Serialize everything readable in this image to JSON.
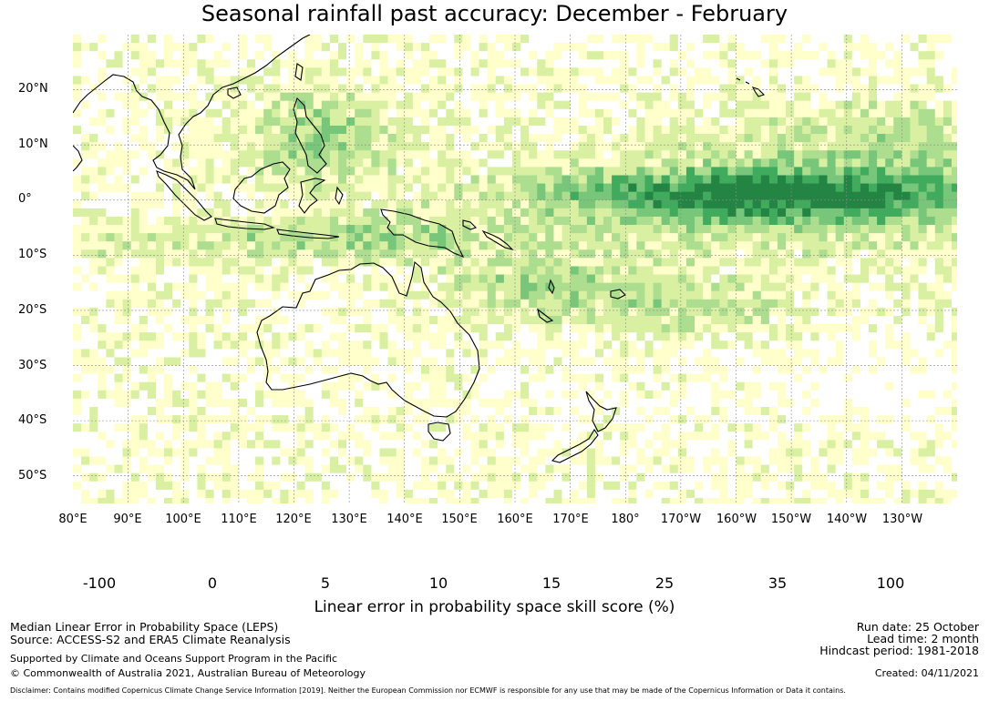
{
  "title": "Seasonal rainfall past accuracy: December - February",
  "map": {
    "lat_labels": [
      "20°N",
      "10°N",
      "0°",
      "10°S",
      "20°S",
      "30°S",
      "40°S",
      "50°S"
    ],
    "lon_labels": [
      "80°E",
      "90°E",
      "100°E",
      "110°E",
      "120°E",
      "130°E",
      "140°E",
      "150°E",
      "160°E",
      "170°E",
      "180°",
      "170°W",
      "160°W",
      "150°W",
      "140°W",
      "130°W"
    ],
    "lat_range": [
      -55,
      30
    ],
    "lon_range": [
      80,
      240
    ]
  },
  "colorbar": {
    "ticks": [
      "-100",
      "0",
      "5",
      "10",
      "15",
      "25",
      "35",
      "100"
    ],
    "colors": [
      "#ffffff",
      "#ffffcc",
      "#d9f0a3",
      "#addd8e",
      "#78c679",
      "#41ab5d",
      "#238443"
    ],
    "label": "Linear error in probability space skill score (%)"
  },
  "footer": {
    "line1": "Median Linear Error in Probability Space (LEPS)",
    "line2": "Source: ACCESS-S2 and ERA5 Climate Reanalysis",
    "line3": "Supported by Climate and Oceans Support Program in the Pacific",
    "line4": "© Commonwealth of Australia 2021, Australian Bureau of Meteorology",
    "run_date": "Run date: 25 October",
    "lead_time": "Lead time: 2 month",
    "hindcast": "Hindcast period: 1981-2018",
    "created": "Created: 04/11/2021",
    "disclaimer": "Disclaimer: Contains modified Copernicus Climate Change Service Information [2019]. Neither the European Commission nor ECMWF is responsible for any use that may be made of the Copernicus Information or Data it contains."
  }
}
